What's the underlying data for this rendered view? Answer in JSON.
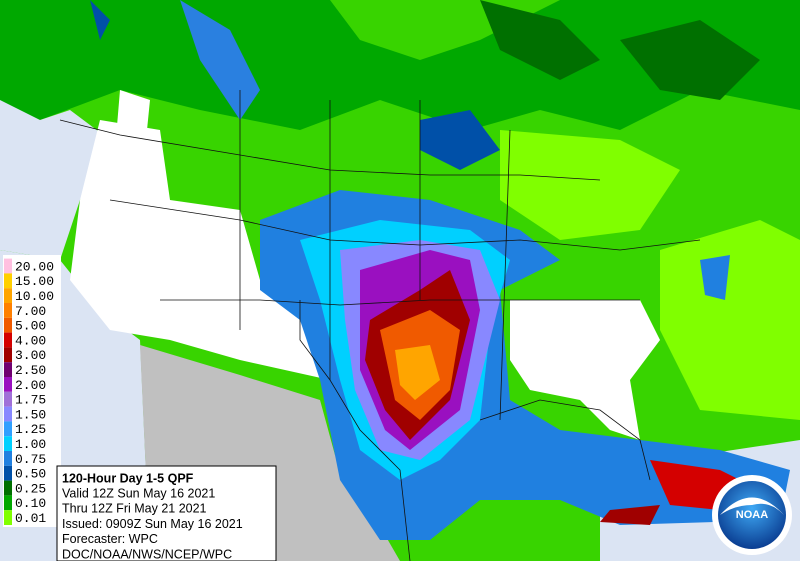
{
  "legend": {
    "items": [
      {
        "label": "20.00",
        "color": "#ffc0e0"
      },
      {
        "label": "15.00",
        "color": "#ffd000"
      },
      {
        "label": "10.00",
        "color": "#ffa500"
      },
      {
        "label": "7.00",
        "color": "#ff8000"
      },
      {
        "label": "5.00",
        "color": "#f05a00"
      },
      {
        "label": "4.00",
        "color": "#d40000"
      },
      {
        "label": "3.00",
        "color": "#a00000"
      },
      {
        "label": "2.50",
        "color": "#700070"
      },
      {
        "label": "2.00",
        "color": "#9a10c0"
      },
      {
        "label": "1.75",
        "color": "#a070d8"
      },
      {
        "label": "1.50",
        "color": "#8888ff"
      },
      {
        "label": "1.25",
        "color": "#30a0ff"
      },
      {
        "label": "1.00",
        "color": "#00d0ff"
      },
      {
        "label": "0.75",
        "color": "#2080e0"
      },
      {
        "label": "0.50",
        "color": "#0050a8"
      },
      {
        "label": "0.25",
        "color": "#007000"
      },
      {
        "label": "0.10",
        "color": "#00a800"
      },
      {
        "label": "0.01",
        "color": "#80ff00"
      }
    ]
  },
  "info": {
    "title": "120-Hour Day 1-5 QPF",
    "lines": [
      "Valid 12Z Sun May 16 2021",
      "Thru 12Z Fri May 21 2021",
      "Issued: 0909Z Sun May 16 2021",
      "Forecaster: WPC",
      "DOC/NOAA/NWS/NCEP/WPC"
    ]
  },
  "logo": {
    "text": "NOAA"
  }
}
